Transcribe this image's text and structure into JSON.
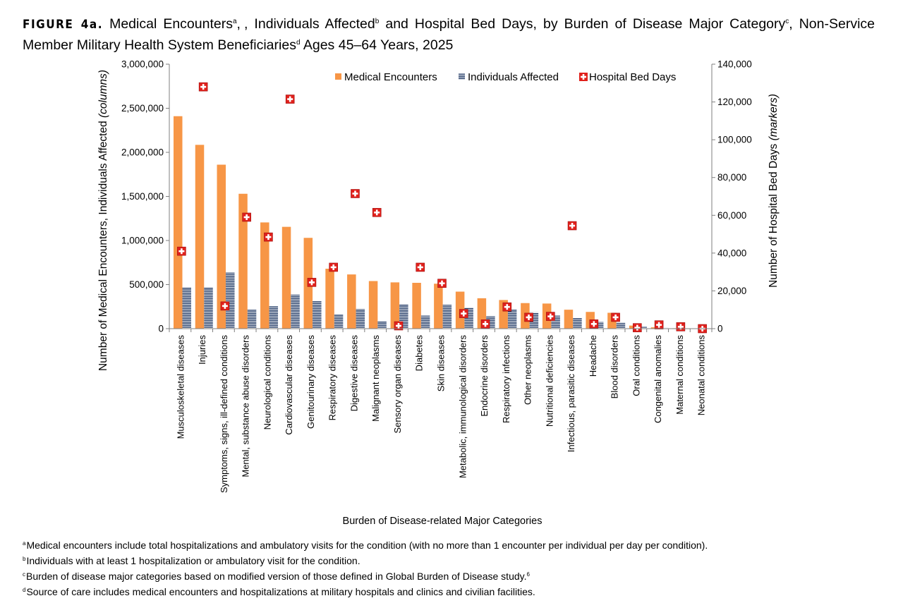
{
  "title": {
    "figure_label": "FIGURE 4a.",
    "part1": "Medical Encounters",
    "sup_a": "a",
    "part2": ", Individuals Affected",
    "sup_b": "b",
    "part3": "and Hospital Bed Days, by Burden of Disease Major Category",
    "sup_c": "c",
    "part4": ", Non-Service Member Military Health System Beneficiaries",
    "sup_d": "d",
    "part5": "Ages 45–64 Years, 2025"
  },
  "footnotes": [
    {
      "mark": "a",
      "text": "Medical encounters include total hospitalizations and ambulatory visits for the condition (with no more than 1 encounter per individual per day per condition)."
    },
    {
      "mark": "b",
      "text": "Individuals with at least 1 hospitalization or ambulatory visit for the condition."
    },
    {
      "mark": "c",
      "text": "Burden of disease major categories based on modified version of those defined in Global Burden of Disease study."
    },
    {
      "mark": "d",
      "text": "Source of care includes medical encounters and hospitalizations at military hospitals and clinics and civilian facilities."
    }
  ],
  "footnote_c_ref": "6",
  "colors": {
    "encounters": "#f79646",
    "individuals": "#1f3864",
    "bed_days_fill": "#e0201b"
  },
  "chart_data": {
    "type": "bar",
    "xlabel": "Burden of Disease-related Major Categories",
    "ylabel_left": "Number of Medical Encounters, Individuals Affected",
    "ylabel_left_italic": "(columns)",
    "ylabel_right": "Number of Hospital Bed Days",
    "ylabel_right_italic": "(markers)",
    "ylim_left": [
      0,
      3000000
    ],
    "yticks_left": [
      "0",
      "500,000",
      "1,000,000",
      "1,500,000",
      "2,000,000",
      "2,500,000",
      "3,000,000"
    ],
    "ylim_right": [
      0,
      140000
    ],
    "yticks_right": [
      "0",
      "20,000",
      "40,000",
      "60,000",
      "80,000",
      "100,000",
      "120,000",
      "140,000"
    ],
    "legend_position": "top",
    "grid": false,
    "categories": [
      "Musculoskeletal diseases",
      "Injuries",
      "Symptoms, signs, ill-defined conditions",
      "Mental, substance abuse disorders",
      "Neurological conditions",
      "Cardiovascular diseases",
      "Genitourinary diseases",
      "Respiratory diseases",
      "Digestive diseases",
      "Malignant neoplasms",
      "Sensory organ diseases",
      "Diabetes",
      "Skin diseases",
      "Metabolic, immunological disorders",
      "Endocrine disorders",
      "Respiratory infections",
      "Other neoplasms",
      "Nutritional deficiencies",
      "Infectious, parasitic diseases",
      "Headache",
      "Blood disorders",
      "Oral conditions",
      "Congenital anomalies",
      "Maternal conditions",
      "Neonatal conditions"
    ],
    "series": [
      {
        "name": "Medical Encounters",
        "axis": "left",
        "kind": "bar",
        "values": [
          2410000,
          2085000,
          1860000,
          1530000,
          1205000,
          1155000,
          1030000,
          680000,
          615000,
          540000,
          525000,
          520000,
          510000,
          420000,
          345000,
          325000,
          290000,
          285000,
          215000,
          190000,
          180000,
          35000,
          15000,
          5000,
          2000
        ]
      },
      {
        "name": "Individuals Affected",
        "axis": "left",
        "kind": "bar",
        "values": [
          470000,
          465000,
          635000,
          215000,
          255000,
          385000,
          315000,
          165000,
          225000,
          80000,
          275000,
          150000,
          270000,
          240000,
          145000,
          220000,
          185000,
          150000,
          120000,
          75000,
          70000,
          20000,
          10000,
          3000,
          1000
        ]
      },
      {
        "name": "Hospital Bed Days",
        "axis": "right",
        "kind": "marker",
        "values": [
          41000,
          128000,
          12000,
          59000,
          48500,
          121500,
          24500,
          32500,
          71500,
          61500,
          1500,
          32500,
          24000,
          8000,
          2500,
          11500,
          6000,
          6500,
          54500,
          2500,
          6000,
          500,
          2000,
          1000,
          0
        ]
      }
    ]
  }
}
